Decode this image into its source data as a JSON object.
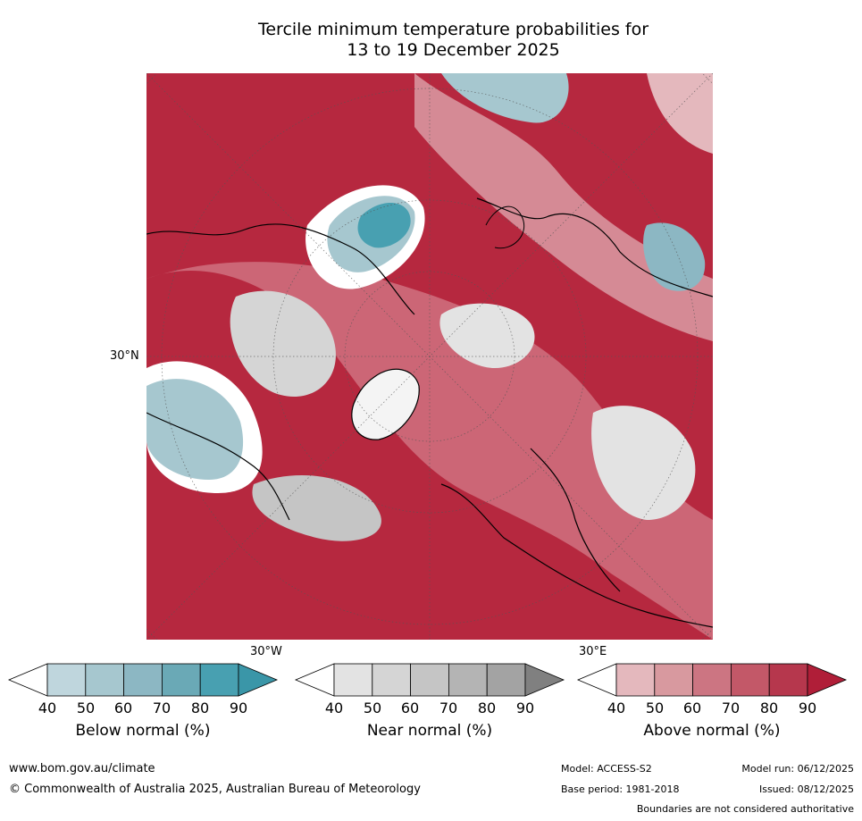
{
  "title_line1": "Tercile minimum temperature probabilities for",
  "title_line2": "13 to 19 December 2025",
  "map_labels": {
    "lat30": "30°N",
    "lon_w30": "30°W",
    "lon_e30": "30°E"
  },
  "colorbars": [
    {
      "title": "Below normal (%)",
      "ticks": [
        "40",
        "50",
        "60",
        "70",
        "80",
        "90"
      ],
      "colors": [
        "#ffffff",
        "#bfd6dd",
        "#a6c7cf",
        "#8cb7c3",
        "#6aa9b6",
        "#48a0b1",
        "#3a96a8"
      ]
    },
    {
      "title": "Near normal (%)",
      "ticks": [
        "40",
        "50",
        "60",
        "70",
        "80",
        "90"
      ],
      "colors": [
        "#ffffff",
        "#e3e3e3",
        "#d5d5d5",
        "#c5c5c5",
        "#b4b4b4",
        "#a3a3a3",
        "#808080"
      ]
    },
    {
      "title": "Above normal (%)",
      "ticks": [
        "40",
        "50",
        "60",
        "70",
        "80",
        "90"
      ],
      "colors": [
        "#ffffff",
        "#e4b8bd",
        "#d8999f",
        "#cc7582",
        "#c35868",
        "#b6374d",
        "#b01e38"
      ]
    }
  ],
  "footer": {
    "site": "www.bom.gov.au/climate",
    "copyright": "© Commonwealth of Australia 2025, Australian Bureau of Meteorology",
    "model": "Model: ACCESS-S2",
    "base_period": "Base period: 1981-2018",
    "model_run": "Model run: 06/12/2025",
    "issued": "Issued: 08/12/2025",
    "disclaimer": "Boundaries are not considered authoritative"
  }
}
